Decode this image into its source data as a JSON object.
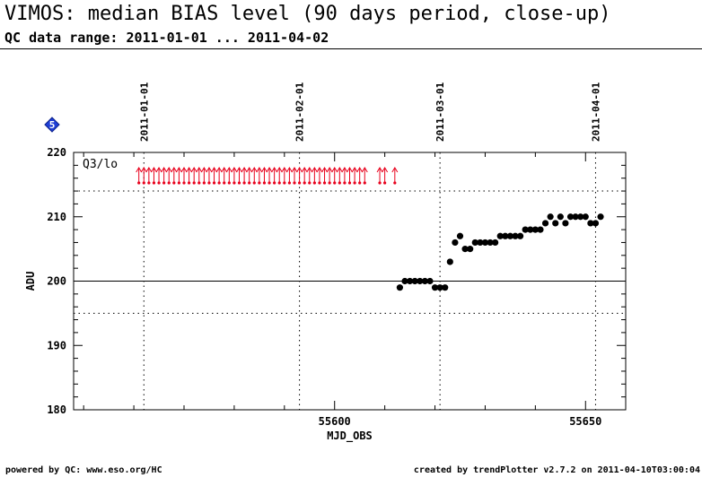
{
  "header": {
    "title": "VIMOS: median BIAS level (90 days period, close-up)",
    "subtitle": "QC data range: 2011-01-01 ... 2011-04-02"
  },
  "footer": {
    "left": "powered by QC: www.eso.org/HC",
    "right": "created by trendPlotter v2.7.2 on 2011-04-10T03:00:04"
  },
  "badge": {
    "label": "5",
    "color": "#1f3fd6"
  },
  "chart_data": {
    "type": "scatter",
    "xlabel": "MJD_OBS",
    "ylabel": "ADU",
    "xlim": [
      55548,
      55658
    ],
    "ylim": [
      180,
      220
    ],
    "xticks": [
      55600,
      55650
    ],
    "yticks": [
      180,
      190,
      200,
      210,
      220
    ],
    "date_markers": [
      {
        "label": "2011-01-01",
        "x": 55562
      },
      {
        "label": "2011-02-01",
        "x": 55593
      },
      {
        "label": "2011-03-01",
        "x": 55621
      },
      {
        "label": "2011-04-01",
        "x": 55652
      }
    ],
    "reference_line": 200,
    "threshold_lines": [
      195,
      214
    ],
    "outlier_label": "Q3/lo",
    "outlier_color": "#e8001c",
    "outlier_x": [
      55561,
      55562,
      55563,
      55564,
      55565,
      55566,
      55567,
      55568,
      55569,
      55570,
      55571,
      55572,
      55573,
      55574,
      55575,
      55576,
      55577,
      55578,
      55579,
      55580,
      55581,
      55582,
      55583,
      55584,
      55585,
      55586,
      55587,
      55588,
      55589,
      55590,
      55591,
      55592,
      55593,
      55594,
      55595,
      55596,
      55597,
      55598,
      55599,
      55600,
      55601,
      55602,
      55603,
      55604,
      55605,
      55606,
      55609,
      55610,
      55612
    ],
    "series": [
      {
        "color": "#000000",
        "x": [
          55613,
          55614,
          55615,
          55616,
          55617,
          55618,
          55619,
          55620,
          55621,
          55622,
          55623,
          55624,
          55625,
          55626,
          55627,
          55628,
          55629,
          55630,
          55631,
          55632,
          55633,
          55634,
          55635,
          55636,
          55637,
          55638,
          55639,
          55640,
          55641,
          55642,
          55643,
          55644,
          55645,
          55646,
          55647,
          55648,
          55649,
          55650,
          55651,
          55652,
          55653
        ],
        "y": [
          199,
          200,
          200,
          200,
          200,
          200,
          200,
          199,
          199,
          199,
          203,
          206,
          207,
          205,
          205,
          206,
          206,
          206,
          206,
          206,
          207,
          207,
          207,
          207,
          207,
          208,
          208,
          208,
          208,
          209,
          210,
          209,
          210,
          209,
          210,
          210,
          210,
          210,
          209,
          209,
          210
        ]
      }
    ]
  }
}
